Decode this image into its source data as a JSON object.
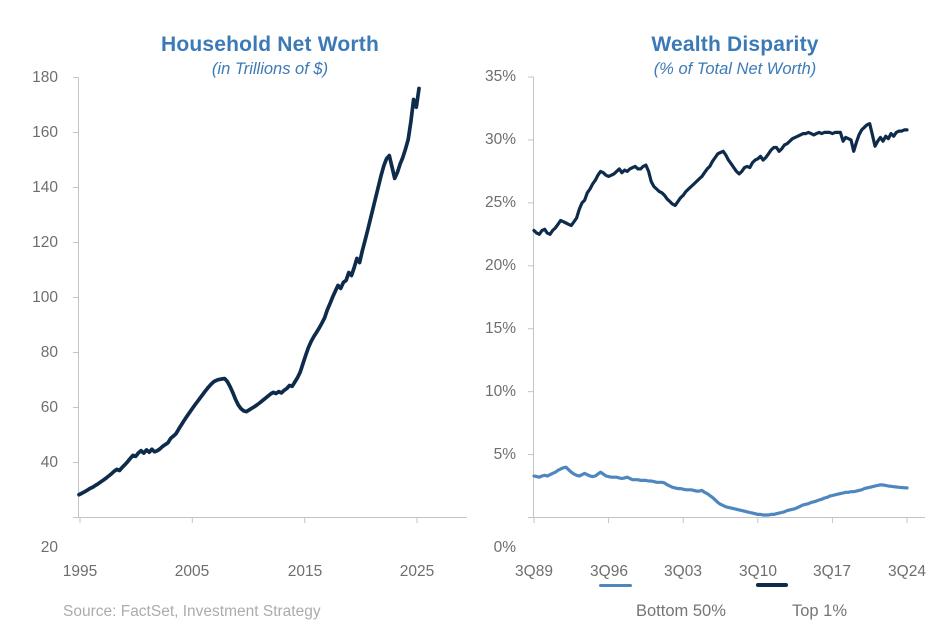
{
  "source_note": "Source: FactSet, Investment Strategy",
  "colors": {
    "title_blue": "#3C7AB6",
    "net_worth_line": "#0E2B4B",
    "top1_line": "#0E2B4B",
    "bottom50_line": "#4E86C0",
    "axis_gray": "#C4C4C4",
    "tick_label_gray": "#6E6E6E",
    "source_gray": "#ACACAC"
  },
  "legend": {
    "bottom50_label": "Bottom 50%",
    "top1_label": "Top 1%"
  },
  "chart_data": [
    {
      "id": "household-net-worth",
      "type": "line",
      "title": "Household Net Worth",
      "subtitle": "(in Trillions of $)",
      "xlabel": "",
      "ylabel": "Trillions of $",
      "frequency": "quarterly",
      "x_range": [
        "1Q95",
        "2025"
      ],
      "x_tick_labels": [
        "1995",
        "2005",
        "2015",
        "2025"
      ],
      "y_tick_labels": [
        "180",
        "160",
        "140",
        "120",
        "100",
        "80",
        "60",
        "40",
        "20"
      ],
      "ylim": [
        20,
        180
      ],
      "y_step": 20,
      "grid": false,
      "legend_position": "none",
      "series": [
        {
          "name": "Household Net Worth",
          "color": "#0E2B4B",
          "values": [
            28.3,
            28.8,
            29.3,
            29.9,
            30.5,
            31.0,
            31.6,
            32.2,
            32.9,
            33.6,
            34.3,
            35.1,
            35.9,
            36.8,
            37.5,
            37.1,
            38.2,
            39.2,
            40.3,
            41.5,
            42.6,
            42.2,
            43.5,
            44.3,
            43.4,
            44.6,
            43.7,
            44.8,
            43.9,
            44.3,
            45.0,
            45.9,
            46.5,
            47.2,
            48.8,
            49.6,
            50.5,
            52.2,
            53.8,
            55.3,
            56.8,
            58.2,
            59.6,
            61.0,
            62.3,
            63.6,
            64.9,
            66.2,
            67.4,
            68.5,
            69.4,
            69.9,
            70.2,
            70.4,
            70.5,
            69.4,
            67.6,
            65.4,
            63.0,
            61.0,
            59.6,
            58.8,
            58.5,
            59.1,
            59.7,
            60.3,
            61.0,
            61.7,
            62.5,
            63.3,
            64.1,
            64.9,
            65.5,
            65.1,
            65.8,
            65.3,
            66.2,
            66.9,
            68.0,
            67.7,
            69.3,
            70.9,
            73.0,
            76.0,
            79.0,
            81.8,
            84.0,
            85.8,
            87.3,
            88.9,
            90.7,
            92.6,
            95.5,
            97.8,
            100.2,
            102.3,
            104.4,
            103.3,
            105.5,
            106.2,
            109.1,
            108.0,
            110.9,
            114.2,
            112.7,
            117.0,
            120.7,
            124.5,
            128.5,
            132.5,
            136.5,
            140.5,
            144.5,
            148.0,
            150.5,
            151.6,
            147.5,
            143.3,
            145.5,
            148.5,
            150.9,
            154.0,
            157.5,
            164.0,
            172.0,
            169.2,
            176.0
          ]
        }
      ]
    },
    {
      "id": "wealth-disparity",
      "type": "line",
      "title": "Wealth Disparity",
      "subtitle": "(% of Total Net Worth)",
      "xlabel": "",
      "ylabel": "% of Total Net Worth",
      "frequency": "quarterly",
      "x_range": [
        "3Q89",
        "3Q24"
      ],
      "x_tick_labels": [
        "3Q89",
        "3Q96",
        "3Q03",
        "3Q10",
        "3Q17",
        "3Q24"
      ],
      "y_tick_labels": [
        "35%",
        "30%",
        "25%",
        "20%",
        "15%",
        "10%",
        "5%",
        "0%"
      ],
      "ylim": [
        0,
        35
      ],
      "y_step": 5,
      "grid": false,
      "legend_position": "bottom",
      "series": [
        {
          "name": "Bottom 50%",
          "color": "#4E86C0",
          "values": [
            3.3,
            3.25,
            3.2,
            3.3,
            3.35,
            3.3,
            3.4,
            3.5,
            3.6,
            3.75,
            3.85,
            3.95,
            4.0,
            3.8,
            3.6,
            3.45,
            3.35,
            3.3,
            3.4,
            3.5,
            3.4,
            3.3,
            3.25,
            3.3,
            3.45,
            3.6,
            3.45,
            3.3,
            3.25,
            3.2,
            3.2,
            3.2,
            3.15,
            3.1,
            3.15,
            3.2,
            3.1,
            3.0,
            3.0,
            3.0,
            2.95,
            2.95,
            2.95,
            2.9,
            2.9,
            2.85,
            2.8,
            2.8,
            2.8,
            2.75,
            2.6,
            2.5,
            2.4,
            2.35,
            2.3,
            2.3,
            2.25,
            2.2,
            2.2,
            2.2,
            2.15,
            2.1,
            2.1,
            2.15,
            2.0,
            1.9,
            1.75,
            1.6,
            1.4,
            1.2,
            1.05,
            0.95,
            0.85,
            0.8,
            0.75,
            0.7,
            0.65,
            0.6,
            0.55,
            0.5,
            0.45,
            0.4,
            0.35,
            0.3,
            0.25,
            0.25,
            0.2,
            0.2,
            0.2,
            0.25,
            0.25,
            0.3,
            0.35,
            0.4,
            0.45,
            0.55,
            0.6,
            0.65,
            0.7,
            0.8,
            0.9,
            1.0,
            1.05,
            1.1,
            1.2,
            1.25,
            1.3,
            1.4,
            1.45,
            1.55,
            1.6,
            1.7,
            1.75,
            1.8,
            1.85,
            1.9,
            1.95,
            2.0,
            2.0,
            2.05,
            2.05,
            2.1,
            2.15,
            2.2,
            2.3,
            2.35,
            2.4,
            2.45,
            2.5,
            2.55,
            2.6,
            2.58,
            2.55,
            2.5,
            2.48,
            2.45,
            2.42,
            2.4,
            2.38,
            2.36,
            2.35
          ]
        },
        {
          "name": "Top 1%",
          "color": "#0E2B4B",
          "values": [
            22.8,
            22.6,
            22.5,
            22.8,
            22.9,
            22.6,
            22.5,
            22.8,
            23.0,
            23.3,
            23.6,
            23.5,
            23.4,
            23.3,
            23.2,
            23.5,
            23.8,
            24.5,
            25.0,
            25.2,
            25.8,
            26.1,
            26.5,
            26.8,
            27.2,
            27.5,
            27.4,
            27.2,
            27.1,
            27.2,
            27.3,
            27.5,
            27.7,
            27.4,
            27.6,
            27.5,
            27.7,
            27.8,
            27.9,
            27.7,
            27.7,
            27.9,
            28.0,
            27.5,
            26.7,
            26.3,
            26.1,
            25.9,
            25.8,
            25.6,
            25.3,
            25.1,
            24.9,
            24.8,
            25.1,
            25.4,
            25.6,
            25.9,
            26.1,
            26.3,
            26.5,
            26.7,
            26.9,
            27.1,
            27.4,
            27.7,
            27.9,
            28.3,
            28.6,
            28.9,
            29.0,
            29.1,
            28.8,
            28.4,
            28.1,
            27.8,
            27.5,
            27.3,
            27.5,
            27.8,
            27.9,
            27.8,
            28.2,
            28.4,
            28.5,
            28.7,
            28.4,
            28.6,
            28.9,
            29.2,
            29.4,
            29.4,
            29.1,
            29.3,
            29.6,
            29.7,
            29.9,
            30.1,
            30.2,
            30.3,
            30.4,
            30.5,
            30.5,
            30.6,
            30.5,
            30.4,
            30.5,
            30.6,
            30.5,
            30.6,
            30.6,
            30.6,
            30.5,
            30.6,
            30.6,
            30.6,
            29.9,
            30.2,
            30.1,
            30.0,
            29.1,
            29.8,
            30.4,
            30.8,
            31.0,
            31.2,
            31.3,
            30.4,
            29.5,
            29.9,
            30.2,
            29.9,
            30.3,
            30.1,
            30.5,
            30.3,
            30.6,
            30.7,
            30.7,
            30.8,
            30.8
          ]
        }
      ]
    }
  ]
}
